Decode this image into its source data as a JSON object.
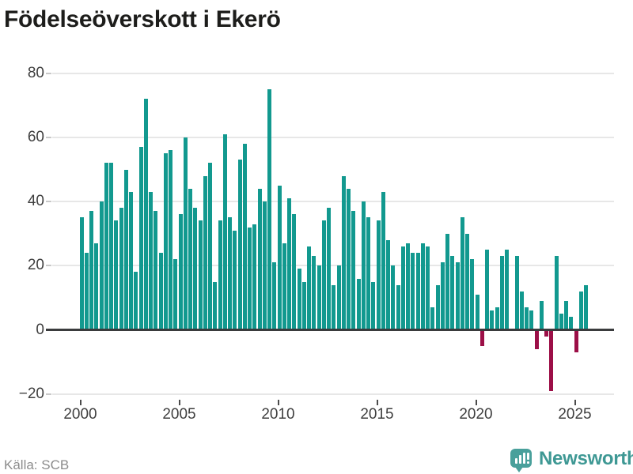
{
  "title": "Födelseöverskott i Ekerö",
  "source": "Källa: SCB",
  "logo": {
    "text": "Newsworthy"
  },
  "colors": {
    "bar_positive": "#12998f",
    "bar_negative": "#9c0f47",
    "grid": "#e7e7e7",
    "axis": "#3a3b3d",
    "labels": "#3f3f3f",
    "title": "#1d1d1b",
    "source": "#8b8b8b",
    "logo": "#3e9894"
  },
  "chart_data": {
    "type": "bar",
    "title": "Födelseöverskott i Ekerö",
    "x": [
      "2000 Q1",
      "2000 Q2",
      "2000 Q3",
      "2000 Q4",
      "2001 Q1",
      "2001 Q2",
      "2001 Q3",
      "2001 Q4",
      "2002 Q1",
      "2002 Q2",
      "2002 Q3",
      "2002 Q4",
      "2003 Q1",
      "2003 Q2",
      "2003 Q3",
      "2003 Q4",
      "2004 Q1",
      "2004 Q2",
      "2004 Q3",
      "2004 Q4",
      "2005 Q1",
      "2005 Q2",
      "2005 Q3",
      "2005 Q4",
      "2006 Q1",
      "2006 Q2",
      "2006 Q3",
      "2006 Q4",
      "2007 Q1",
      "2007 Q2",
      "2007 Q3",
      "2007 Q4",
      "2008 Q1",
      "2008 Q2",
      "2008 Q3",
      "2008 Q4",
      "2009 Q1",
      "2009 Q2",
      "2009 Q3",
      "2009 Q4",
      "2010 Q1",
      "2010 Q2",
      "2010 Q3",
      "2010 Q4",
      "2011 Q1",
      "2011 Q2",
      "2011 Q3",
      "2011 Q4",
      "2012 Q1",
      "2012 Q2",
      "2012 Q3",
      "2012 Q4",
      "2013 Q1",
      "2013 Q2",
      "2013 Q3",
      "2013 Q4",
      "2014 Q1",
      "2014 Q2",
      "2014 Q3",
      "2014 Q4",
      "2015 Q1",
      "2015 Q2",
      "2015 Q3",
      "2015 Q4",
      "2016 Q1",
      "2016 Q2",
      "2016 Q3",
      "2016 Q4",
      "2017 Q1",
      "2017 Q2",
      "2017 Q3",
      "2017 Q4",
      "2018 Q1",
      "2018 Q2",
      "2018 Q3",
      "2018 Q4",
      "2019 Q1",
      "2019 Q2",
      "2019 Q3",
      "2019 Q4",
      "2020 Q1",
      "2020 Q2",
      "2020 Q3",
      "2020 Q4",
      "2021 Q1",
      "2021 Q2",
      "2021 Q3",
      "2021 Q4",
      "2022 Q1",
      "2022 Q2",
      "2022 Q3",
      "2022 Q4",
      "2023 Q1",
      "2023 Q2",
      "2023 Q3",
      "2023 Q4",
      "2024 Q1",
      "2024 Q2",
      "2024 Q3",
      "2024 Q4",
      "2025 Q1",
      "2025 Q2",
      "2025 Q3"
    ],
    "values": [
      35,
      24,
      37,
      27,
      40,
      52,
      52,
      34,
      38,
      50,
      43,
      18,
      57,
      72,
      43,
      37,
      24,
      55,
      56,
      22,
      36,
      60,
      44,
      38,
      34,
      48,
      52,
      15,
      34,
      61,
      35,
      31,
      53,
      58,
      32,
      33,
      44,
      40,
      75,
      21,
      45,
      27,
      41,
      36,
      19,
      15,
      26,
      23,
      20,
      34,
      38,
      14,
      20,
      48,
      44,
      37,
      16,
      40,
      35,
      15,
      34,
      43,
      28,
      20,
      14,
      26,
      27,
      24,
      24,
      27,
      26,
      7,
      14,
      21,
      30,
      23,
      21,
      35,
      30,
      22,
      11,
      -5,
      25,
      6,
      7,
      23,
      25,
      0,
      23,
      12,
      7,
      6,
      -6,
      9,
      -2,
      -19,
      23,
      5,
      9,
      4,
      -7,
      12,
      14
    ],
    "ylim": [
      -20,
      80
    ],
    "y_ticks": [
      80,
      60,
      40,
      20,
      0,
      -20
    ],
    "y_tick_labels": [
      "80",
      "60",
      "40",
      "20",
      "0",
      "−20"
    ],
    "x_tick_labels": [
      "2000",
      "2005",
      "2010",
      "2015",
      "2020",
      "2025"
    ],
    "x_tick_indices": [
      0,
      20,
      40,
      60,
      80,
      100
    ],
    "grid": true,
    "legend": false
  }
}
